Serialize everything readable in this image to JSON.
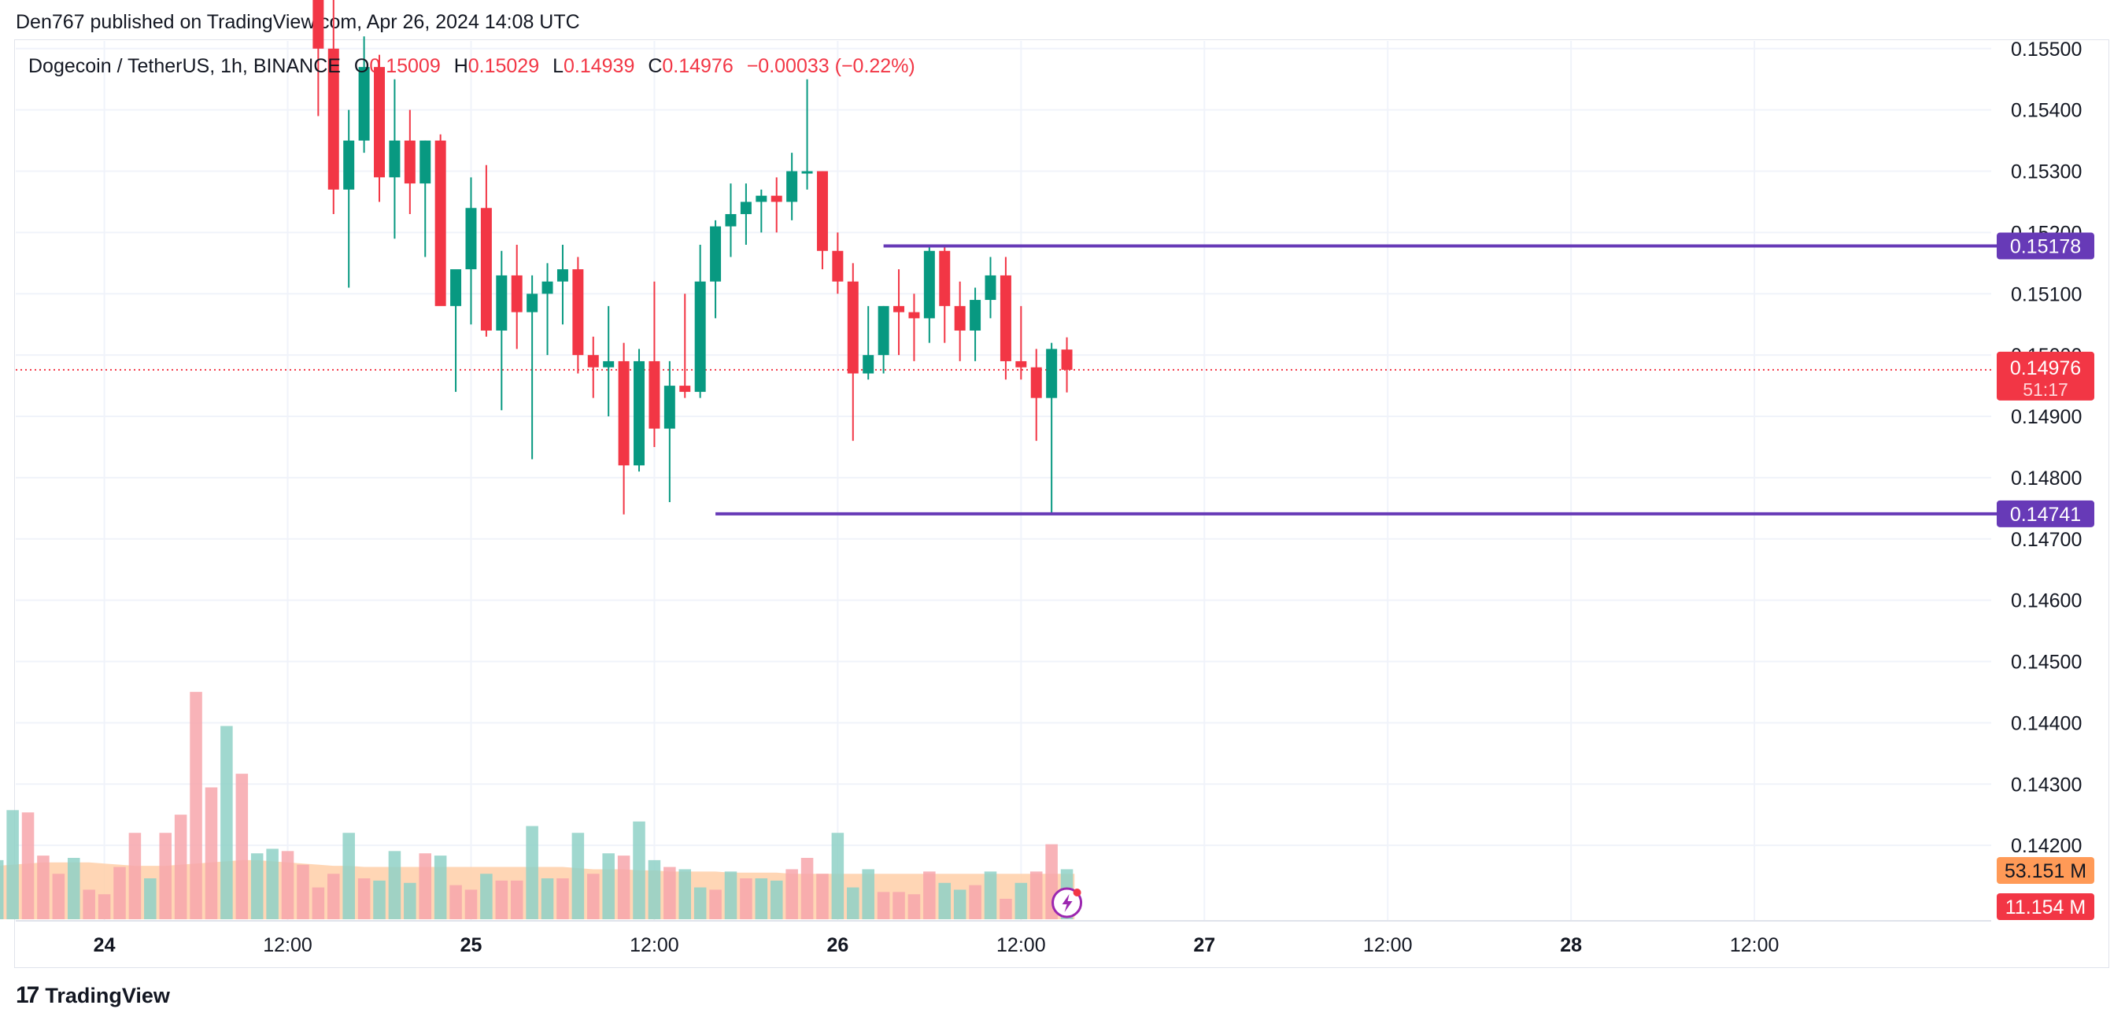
{
  "header": {
    "publisher_line": "Den767 published on TradingView.com, Apr 26, 2024 14:08 UTC"
  },
  "legend": {
    "symbol": "Dogecoin / TetherUS, 1h, BINANCE",
    "open_label": "O",
    "open": "0.15009",
    "high_label": "H",
    "high": "0.15029",
    "low_label": "L",
    "low": "0.14939",
    "close_label": "C",
    "close": "0.14976",
    "change": "−0.00033 (−0.22%)"
  },
  "footer": {
    "brand": "TradingView",
    "logo_mark": "17"
  },
  "colors": {
    "up": "#089981",
    "down": "#f23645",
    "vol_up": "#8fd1c7",
    "vol_down": "#f7a6ab",
    "vol_ma_fill": "#ffcfa8",
    "level_line": "#673ab7",
    "grid": "#f0f3fa",
    "axis_text": "#131722"
  },
  "chart_data": {
    "type": "candlestick",
    "title": "Dogecoin / TetherUS, 1h, BINANCE",
    "ylim": [
      0.141,
      0.1551
    ],
    "y_ticks": [
      "0.15500",
      "0.15400",
      "0.15300",
      "0.15200",
      "0.15100",
      "0.15000",
      "0.14900",
      "0.14800",
      "0.14700",
      "0.14600",
      "0.14500",
      "0.14400",
      "0.14300",
      "0.14200"
    ],
    "x_tick_labels": [
      "24",
      "12:00",
      "25",
      "12:00",
      "26",
      "12:00",
      "27",
      "12:00",
      "28",
      "12:00"
    ],
    "x_tick_bold": [
      true,
      false,
      true,
      false,
      true,
      false,
      true,
      false,
      true,
      false
    ],
    "x_tick_hour_index": [
      0,
      12,
      24,
      36,
      48,
      60,
      72,
      84,
      96,
      108
    ],
    "first_bar_hour_index": 14,
    "hours_span": [
      -5.8,
      123.5
    ],
    "candles": [
      {
        "o": 0.1561,
        "h": 0.157,
        "l": 0.1539,
        "c": 0.155
      },
      {
        "o": 0.155,
        "h": 0.1558,
        "l": 0.1523,
        "c": 0.1527
      },
      {
        "o": 0.1527,
        "h": 0.154,
        "l": 0.1511,
        "c": 0.1535
      },
      {
        "o": 0.1535,
        "h": 0.1552,
        "l": 0.1533,
        "c": 0.1547
      },
      {
        "o": 0.1547,
        "h": 0.1549,
        "l": 0.1525,
        "c": 0.1529
      },
      {
        "o": 0.1529,
        "h": 0.1545,
        "l": 0.1519,
        "c": 0.1535
      },
      {
        "o": 0.1535,
        "h": 0.154,
        "l": 0.1523,
        "c": 0.1528
      },
      {
        "o": 0.1528,
        "h": 0.1535,
        "l": 0.1516,
        "c": 0.1535
      },
      {
        "o": 0.1535,
        "h": 0.1536,
        "l": 0.1509,
        "c": 0.1508
      },
      {
        "o": 0.1508,
        "h": 0.1513,
        "l": 0.1494,
        "c": 0.1514
      },
      {
        "o": 0.1514,
        "h": 0.1529,
        "l": 0.1505,
        "c": 0.1524
      },
      {
        "o": 0.1524,
        "h": 0.1531,
        "l": 0.1503,
        "c": 0.1504
      },
      {
        "o": 0.1504,
        "h": 0.1517,
        "l": 0.1491,
        "c": 0.1513
      },
      {
        "o": 0.1513,
        "h": 0.1518,
        "l": 0.1501,
        "c": 0.1507
      },
      {
        "o": 0.1507,
        "h": 0.1513,
        "l": 0.1483,
        "c": 0.151
      },
      {
        "o": 0.151,
        "h": 0.1515,
        "l": 0.15,
        "c": 0.1512
      },
      {
        "o": 0.1512,
        "h": 0.1518,
        "l": 0.1505,
        "c": 0.1514
      },
      {
        "o": 0.1514,
        "h": 0.1516,
        "l": 0.1497,
        "c": 0.15
      },
      {
        "o": 0.15,
        "h": 0.1503,
        "l": 0.1493,
        "c": 0.1498
      },
      {
        "o": 0.1498,
        "h": 0.1508,
        "l": 0.149,
        "c": 0.1499
      },
      {
        "o": 0.1499,
        "h": 0.1502,
        "l": 0.1474,
        "c": 0.1482
      },
      {
        "o": 0.1482,
        "h": 0.1501,
        "l": 0.1481,
        "c": 0.1499
      },
      {
        "o": 0.1499,
        "h": 0.1512,
        "l": 0.1485,
        "c": 0.1488
      },
      {
        "o": 0.1488,
        "h": 0.1499,
        "l": 0.1476,
        "c": 0.1495
      },
      {
        "o": 0.1495,
        "h": 0.151,
        "l": 0.1493,
        "c": 0.1494
      },
      {
        "o": 0.1494,
        "h": 0.1518,
        "l": 0.1493,
        "c": 0.1512
      },
      {
        "o": 0.1512,
        "h": 0.1522,
        "l": 0.1506,
        "c": 0.1521
      },
      {
        "o": 0.1521,
        "h": 0.1528,
        "l": 0.1516,
        "c": 0.1523
      },
      {
        "o": 0.1523,
        "h": 0.1528,
        "l": 0.1518,
        "c": 0.1525
      },
      {
        "o": 0.1525,
        "h": 0.1527,
        "l": 0.152,
        "c": 0.1526
      },
      {
        "o": 0.1526,
        "h": 0.1529,
        "l": 0.152,
        "c": 0.1525
      },
      {
        "o": 0.1525,
        "h": 0.1533,
        "l": 0.1522,
        "c": 0.153
      },
      {
        "o": 0.153,
        "h": 0.1545,
        "l": 0.1527,
        "c": 0.153
      },
      {
        "o": 0.153,
        "h": 0.153,
        "l": 0.1514,
        "c": 0.1517
      },
      {
        "o": 0.1517,
        "h": 0.152,
        "l": 0.151,
        "c": 0.1512
      },
      {
        "o": 0.1512,
        "h": 0.1515,
        "l": 0.1486,
        "c": 0.1497
      },
      {
        "o": 0.1497,
        "h": 0.1508,
        "l": 0.1496,
        "c": 0.15
      },
      {
        "o": 0.15,
        "h": 0.1508,
        "l": 0.1497,
        "c": 0.1508
      },
      {
        "o": 0.1508,
        "h": 0.1514,
        "l": 0.15,
        "c": 0.1507
      },
      {
        "o": 0.1507,
        "h": 0.151,
        "l": 0.1499,
        "c": 0.1506
      },
      {
        "o": 0.1506,
        "h": 0.1518,
        "l": 0.1502,
        "c": 0.1517
      },
      {
        "o": 0.1517,
        "h": 0.1518,
        "l": 0.1502,
        "c": 0.1508
      },
      {
        "o": 0.1508,
        "h": 0.1512,
        "l": 0.1499,
        "c": 0.1504
      },
      {
        "o": 0.1504,
        "h": 0.1511,
        "l": 0.1499,
        "c": 0.1509
      },
      {
        "o": 0.1509,
        "h": 0.1516,
        "l": 0.1506,
        "c": 0.1513
      },
      {
        "o": 0.1513,
        "h": 0.1516,
        "l": 0.1496,
        "c": 0.1499
      },
      {
        "o": 0.1499,
        "h": 0.1508,
        "l": 0.1496,
        "c": 0.1498
      },
      {
        "o": 0.1498,
        "h": 0.1501,
        "l": 0.1486,
        "c": 0.1493
      },
      {
        "o": 0.1493,
        "h": 0.1502,
        "l": 0.14741,
        "c": 0.1501
      },
      {
        "o": 0.15009,
        "h": 0.15029,
        "l": 0.14939,
        "c": 0.14976
      }
    ],
    "volume": {
      "axis_max_M": 90,
      "values_M": [
        13,
        15,
        18,
        16,
        14,
        13,
        17,
        15,
        22,
        38,
        26,
        48,
        47,
        28,
        20,
        27,
        13,
        11,
        23,
        38,
        18,
        38,
        46,
        100,
        58,
        85,
        64,
        29,
        31,
        30,
        24,
        14,
        20,
        38,
        18,
        17,
        30,
        16,
        29,
        28,
        15,
        13,
        20,
        17,
        17,
        41,
        18,
        18,
        38,
        20,
        29,
        28,
        43,
        26,
        23,
        22,
        14,
        13,
        21,
        18,
        18,
        17,
        22,
        27,
        20,
        38,
        14,
        22,
        12,
        12,
        11,
        21,
        16,
        13,
        15,
        21,
        9,
        16,
        21,
        33,
        22
      ],
      "up": [
        false,
        false,
        false,
        false,
        false,
        false,
        false,
        true,
        true,
        true,
        true,
        true,
        false,
        false,
        false,
        true,
        false,
        false,
        false,
        false,
        true,
        false,
        false,
        false,
        false,
        true,
        false,
        true,
        true,
        false,
        false,
        false,
        false,
        true,
        false,
        true,
        true,
        true,
        false,
        true,
        false,
        false,
        true,
        false,
        false,
        true,
        true,
        false,
        true,
        false,
        true,
        false,
        true,
        true,
        false,
        true,
        true,
        false,
        true,
        false,
        true,
        true,
        false,
        false,
        false,
        true,
        true,
        true,
        false,
        false,
        false,
        false,
        true,
        true,
        false,
        true,
        false,
        true,
        false,
        false,
        true
      ],
      "ma_M": [
        24,
        24,
        23.5,
        23,
        23,
        23,
        23,
        23,
        23,
        23.5,
        23.5,
        24,
        24.5,
        25,
        25,
        25,
        25,
        24.5,
        24,
        23.5,
        23.5,
        23.5,
        24,
        24.5,
        25,
        25.5,
        26,
        26,
        25.5,
        25,
        24.5,
        24,
        23.5,
        23.5,
        23,
        23,
        23,
        23,
        23,
        23,
        23,
        23,
        23,
        23,
        23,
        23,
        23,
        23,
        22.5,
        22,
        22,
        22,
        21.5,
        21.5,
        21,
        21,
        21,
        21,
        20.5,
        20.5,
        20.5,
        20.5,
        20,
        20,
        20,
        20,
        20,
        20,
        20,
        20,
        20,
        20,
        20,
        20,
        20,
        20,
        20,
        20,
        20,
        20,
        20
      ],
      "ma_label": "53.151 M",
      "last_label": "11.154 M",
      "ma_label_color": "#ff9a57",
      "last_label_color": "#f23645"
    },
    "levels": [
      {
        "value": 0.15178,
        "label": "0.15178",
        "start_index": 37
      },
      {
        "value": 0.14741,
        "label": "0.14741",
        "start_index": 26
      }
    ],
    "current_price": {
      "value": 0.14976,
      "label": "0.14976",
      "countdown": "51:17"
    }
  }
}
